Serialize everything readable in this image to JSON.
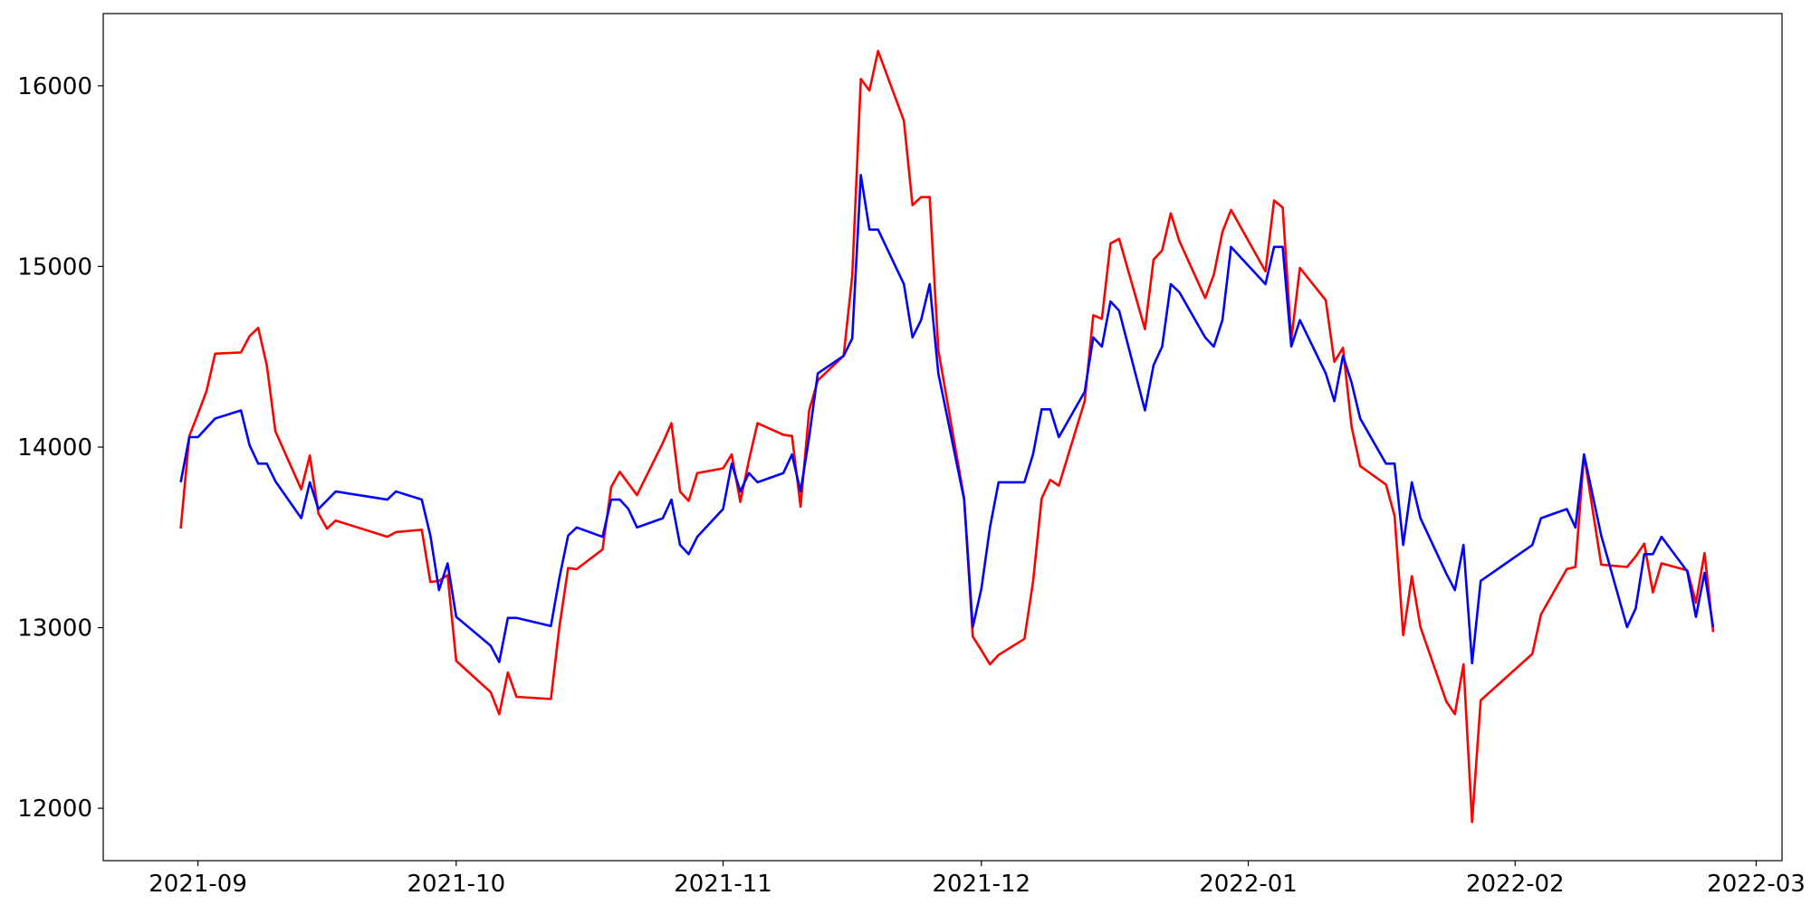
{
  "chart_data": {
    "type": "line",
    "x": [
      "2021-08-30",
      "2021-08-31",
      "2021-09-01",
      "2021-09-02",
      "2021-09-03",
      "2021-09-06",
      "2021-09-07",
      "2021-09-08",
      "2021-09-09",
      "2021-09-10",
      "2021-09-13",
      "2021-09-14",
      "2021-09-15",
      "2021-09-16",
      "2021-09-17",
      "2021-09-23",
      "2021-09-24",
      "2021-09-27",
      "2021-09-28",
      "2021-09-29",
      "2021-09-30",
      "2021-10-01",
      "2021-10-05",
      "2021-10-06",
      "2021-10-07",
      "2021-10-08",
      "2021-10-12",
      "2021-10-13",
      "2021-10-14",
      "2021-10-15",
      "2021-10-18",
      "2021-10-19",
      "2021-10-20",
      "2021-10-21",
      "2021-10-22",
      "2021-10-25",
      "2021-10-26",
      "2021-10-27",
      "2021-10-28",
      "2021-10-29",
      "2021-11-01",
      "2021-11-02",
      "2021-11-03",
      "2021-11-04",
      "2021-11-05",
      "2021-11-08",
      "2021-11-09",
      "2021-11-10",
      "2021-11-11",
      "2021-11-12",
      "2021-11-15",
      "2021-11-16",
      "2021-11-17",
      "2021-11-18",
      "2021-11-19",
      "2021-11-22",
      "2021-11-23",
      "2021-11-24",
      "2021-11-25",
      "2021-11-26",
      "2021-11-29",
      "2021-11-30",
      "2021-12-01",
      "2021-12-02",
      "2021-12-03",
      "2021-12-06",
      "2021-12-07",
      "2021-12-08",
      "2021-12-09",
      "2021-12-10",
      "2021-12-13",
      "2021-12-14",
      "2021-12-15",
      "2021-12-16",
      "2021-12-17",
      "2021-12-20",
      "2021-12-21",
      "2021-12-22",
      "2021-12-23",
      "2021-12-24",
      "2021-12-27",
      "2021-12-28",
      "2021-12-29",
      "2021-12-30",
      "2022-01-03",
      "2022-01-04",
      "2022-01-05",
      "2022-01-06",
      "2022-01-07",
      "2022-01-10",
      "2022-01-11",
      "2022-01-12",
      "2022-01-13",
      "2022-01-14",
      "2022-01-17",
      "2022-01-18",
      "2022-01-19",
      "2022-01-20",
      "2022-01-21",
      "2022-01-24",
      "2022-01-25",
      "2022-01-26",
      "2022-01-27",
      "2022-01-28",
      "2022-02-03",
      "2022-02-04",
      "2022-02-07",
      "2022-02-08",
      "2022-02-09",
      "2022-02-11",
      "2022-02-14",
      "2022-02-15",
      "2022-02-16",
      "2022-02-17",
      "2022-02-18",
      "2022-02-21",
      "2022-02-22",
      "2022-02-23",
      "2022-02-24"
    ],
    "series": [
      {
        "color": "#ff0000",
        "values": [
          13548,
          14061,
          14183,
          14310,
          14517,
          14524,
          14614,
          14660,
          14453,
          14087,
          13766,
          13953,
          13632,
          13548,
          13593,
          13503,
          13529,
          13542,
          13253,
          13259,
          13291,
          12816,
          12643,
          12521,
          12752,
          12617,
          12605,
          13009,
          13330,
          13324,
          13433,
          13779,
          13863,
          13798,
          13734,
          14023,
          14132,
          13754,
          13702,
          13856,
          13882,
          13959,
          13696,
          13927,
          14132,
          14068,
          14061,
          13670,
          14203,
          14369,
          14505,
          14947,
          16038,
          15974,
          16193,
          15807,
          15339,
          15384,
          15384,
          14537,
          13715,
          12951,
          12875,
          12797,
          12849,
          12938,
          13253,
          13715,
          13818,
          13786,
          14254,
          14730,
          14710,
          15127,
          15153,
          14653,
          15037,
          15089,
          15294,
          15140,
          14825,
          14954,
          15191,
          15313,
          14973,
          15365,
          15326,
          14594,
          14992,
          14813,
          14472,
          14549,
          14113,
          13895,
          13792,
          13619,
          12958,
          13285,
          13003,
          12592,
          12521,
          12797,
          11924,
          12598,
          12855,
          13073,
          13324,
          13336,
          13959,
          13349,
          13336,
          13394,
          13465,
          13195,
          13356,
          13317,
          13138,
          13413,
          12976
        ]
      },
      {
        "color": "#0000ff",
        "values": [
          13805,
          14055,
          14055,
          14106,
          14158,
          14203,
          14010,
          13908,
          13908,
          13811,
          13606,
          13805,
          13657,
          13705,
          13754,
          13709,
          13754,
          13709,
          13510,
          13208,
          13356,
          13060,
          12900,
          12810,
          13054,
          13054,
          13009,
          13279,
          13510,
          13555,
          13503,
          13709,
          13709,
          13657,
          13555,
          13606,
          13709,
          13458,
          13407,
          13503,
          13657,
          13908,
          13754,
          13856,
          13805,
          13856,
          13959,
          13754,
          14055,
          14408,
          14505,
          14601,
          15506,
          15204,
          15204,
          14902,
          14607,
          14703,
          14902,
          14408,
          13709,
          13003,
          13215,
          13555,
          13805,
          13805,
          13959,
          14209,
          14209,
          14055,
          14306,
          14607,
          14556,
          14806,
          14755,
          14203,
          14453,
          14556,
          14902,
          14857,
          14607,
          14556,
          14703,
          15108,
          14902,
          15108,
          15108,
          14556,
          14703,
          14408,
          14254,
          14505,
          14357,
          14158,
          13908,
          13908,
          13458,
          13805,
          13606,
          13300,
          13208,
          13458,
          12803,
          13259,
          13458,
          13606,
          13657,
          13555,
          13959,
          13510,
          13003,
          13106,
          13407,
          13407,
          13503,
          13311,
          13060,
          13304,
          13003
        ]
      }
    ],
    "xlim": [
      "2021-08-21",
      "2022-03-04"
    ],
    "xticks": [
      {
        "value": "2021-09-01",
        "label": "2021-09"
      },
      {
        "value": "2021-10-01",
        "label": "2021-10"
      },
      {
        "value": "2021-11-01",
        "label": "2021-11"
      },
      {
        "value": "2021-12-01",
        "label": "2021-12"
      },
      {
        "value": "2022-01-01",
        "label": "2022-01"
      },
      {
        "value": "2022-02-01",
        "label": "2022-02"
      },
      {
        "value": "2022-03-01",
        "label": "2022-03"
      }
    ],
    "ylim": [
      11710,
      16400
    ],
    "yticks": [
      12000,
      13000,
      14000,
      15000,
      16000
    ],
    "grid": false
  }
}
